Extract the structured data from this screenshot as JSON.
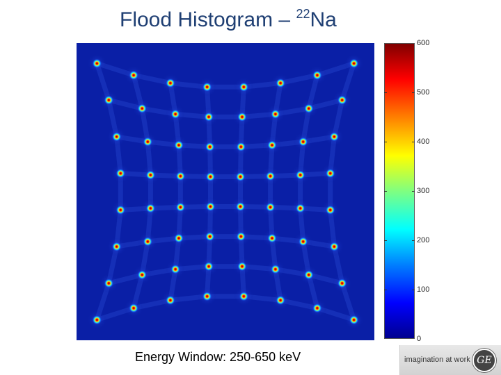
{
  "title": {
    "main": "Flood Histogram –",
    "superscript": "22",
    "element": "Na"
  },
  "colorbar": {
    "ticks": [
      "600",
      "500",
      "400",
      "300",
      "200",
      "100",
      "0"
    ],
    "tick_values": [
      600,
      500,
      400,
      300,
      200,
      100,
      0
    ],
    "range": [
      0,
      600
    ],
    "colormap": "jet"
  },
  "energy_window": "Energy Window:  250-650 keV",
  "logo": {
    "tagline": "imagination at work",
    "icon": "ge-logo-icon",
    "monogram": "GE"
  },
  "colors": {
    "title": "#1f3f73",
    "background": "#0a1fa6"
  }
}
